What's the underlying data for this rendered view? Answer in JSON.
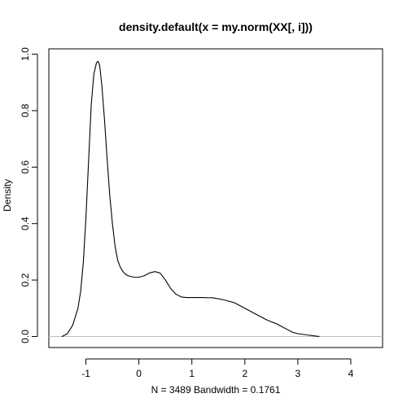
{
  "chart_data": {
    "type": "line",
    "title": "density.default(x = my.norm(XX[, i]))",
    "xlabel": "N = 3489   Bandwidth = 0.1761",
    "ylabel": "Density",
    "xlim": [
      -1.7,
      4.6
    ],
    "ylim": [
      -0.039,
      1.019
    ],
    "x_ticks": [
      -1,
      0,
      1,
      2,
      3,
      4
    ],
    "x_tick_labels": [
      "-1",
      "0",
      "1",
      "2",
      "3",
      "4"
    ],
    "y_ticks": [
      0.0,
      0.2,
      0.4,
      0.6,
      0.8,
      1.0
    ],
    "y_tick_labels": [
      "0.0",
      "0.2",
      "0.4",
      "0.6",
      "0.8",
      "1.0"
    ],
    "baseline": 0,
    "grid": false,
    "series": [
      {
        "name": "density",
        "x": [
          -1.45,
          -1.35,
          -1.25,
          -1.15,
          -1.1,
          -1.05,
          -1.0,
          -0.95,
          -0.9,
          -0.85,
          -0.8,
          -0.77,
          -0.74,
          -0.7,
          -0.65,
          -0.6,
          -0.55,
          -0.5,
          -0.45,
          -0.4,
          -0.35,
          -0.3,
          -0.25,
          -0.2,
          -0.1,
          0.0,
          0.1,
          0.2,
          0.3,
          0.4,
          0.5,
          0.6,
          0.7,
          0.8,
          0.9,
          1.0,
          1.2,
          1.4,
          1.6,
          1.8,
          2.0,
          2.2,
          2.4,
          2.5,
          2.6,
          2.7,
          2.8,
          2.9,
          3.0,
          3.2,
          3.4
        ],
        "y": [
          0.0,
          0.01,
          0.04,
          0.1,
          0.16,
          0.26,
          0.42,
          0.62,
          0.82,
          0.93,
          0.97,
          0.975,
          0.96,
          0.89,
          0.77,
          0.63,
          0.5,
          0.4,
          0.32,
          0.27,
          0.245,
          0.23,
          0.22,
          0.215,
          0.21,
          0.21,
          0.215,
          0.225,
          0.23,
          0.225,
          0.2,
          0.17,
          0.15,
          0.14,
          0.138,
          0.138,
          0.138,
          0.137,
          0.13,
          0.12,
          0.1,
          0.08,
          0.06,
          0.052,
          0.045,
          0.035,
          0.025,
          0.015,
          0.01,
          0.005,
          0.0
        ]
      }
    ]
  }
}
